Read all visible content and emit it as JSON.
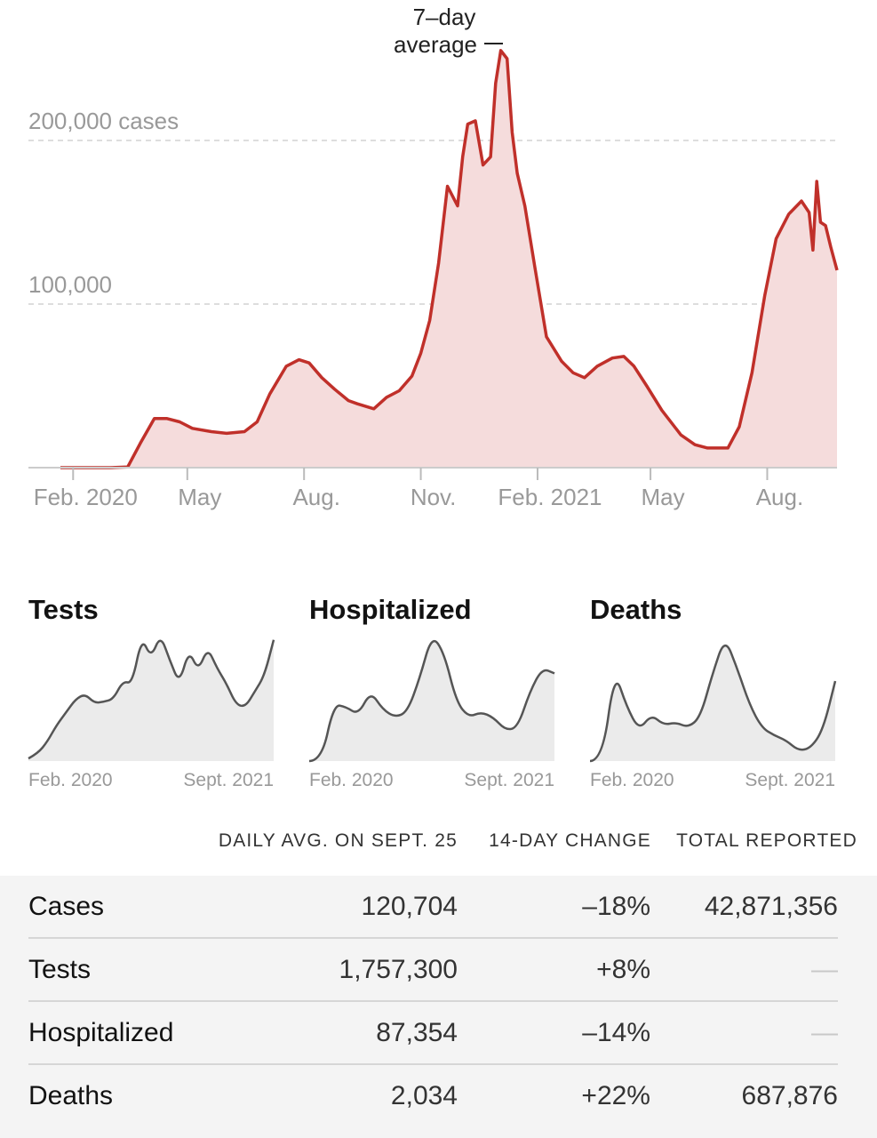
{
  "colors": {
    "case_line": "#c0302a",
    "case_fill": "#f5dcdc",
    "small_line": "#555555",
    "small_fill": "#ebebeb",
    "grid": "#dddddd",
    "axis_text": "#999999"
  },
  "chart_data": [
    {
      "type": "area",
      "title": "",
      "annotation": "7-day average",
      "y_tick_labels": [
        "200,000 cases",
        "100,000"
      ],
      "x_tick_labels": [
        "Feb. 2020",
        "May",
        "Aug.",
        "Nov.",
        "Feb. 2021",
        "May",
        "Aug."
      ],
      "ylim": [
        0,
        260000
      ],
      "grid": true,
      "x": [
        "2020-01-22",
        "2020-02-15",
        "2020-03-01",
        "2020-03-15",
        "2020-03-25",
        "2020-04-05",
        "2020-04-15",
        "2020-04-25",
        "2020-05-05",
        "2020-05-20",
        "2020-06-01",
        "2020-06-15",
        "2020-06-25",
        "2020-07-05",
        "2020-07-18",
        "2020-07-28",
        "2020-08-05",
        "2020-08-15",
        "2020-08-25",
        "2020-09-05",
        "2020-09-12",
        "2020-09-25",
        "2020-10-05",
        "2020-10-15",
        "2020-10-25",
        "2020-11-01",
        "2020-11-08",
        "2020-11-15",
        "2020-11-22",
        "2020-11-30",
        "2020-12-04",
        "2020-12-08",
        "2020-12-14",
        "2020-12-20",
        "2020-12-26",
        "2020-12-30",
        "2021-01-03",
        "2021-01-08",
        "2021-01-12",
        "2021-01-16",
        "2021-01-22",
        "2021-01-30",
        "2021-02-08",
        "2021-02-20",
        "2021-03-01",
        "2021-03-10",
        "2021-03-20",
        "2021-04-01",
        "2021-04-10",
        "2021-04-18",
        "2021-04-28",
        "2021-05-10",
        "2021-05-25",
        "2021-06-05",
        "2021-06-15",
        "2021-06-25",
        "2021-07-01",
        "2021-07-10",
        "2021-07-20",
        "2021-07-30",
        "2021-08-08",
        "2021-08-18",
        "2021-08-28",
        "2021-09-03",
        "2021-09-06",
        "2021-09-09",
        "2021-09-12",
        "2021-09-16",
        "2021-09-20",
        "2021-09-25"
      ],
      "series": [
        {
          "values": [
            0,
            0,
            0,
            400,
            15000,
            30000,
            30000,
            28000,
            24000,
            22000,
            21000,
            22000,
            28000,
            45000,
            62000,
            66000,
            64000,
            55000,
            48000,
            41000,
            39000,
            36000,
            43000,
            47000,
            56000,
            70000,
            90000,
            125000,
            172000,
            160000,
            190000,
            210000,
            212000,
            185000,
            190000,
            235000,
            255000,
            250000,
            205000,
            180000,
            160000,
            122000,
            80000,
            65000,
            58000,
            55000,
            62000,
            67000,
            68000,
            62000,
            50000,
            35000,
            20000,
            14000,
            12000,
            12000,
            12000,
            25000,
            58000,
            105000,
            140000,
            155000,
            163000,
            156000,
            133000,
            175000,
            150000,
            148000,
            135000,
            120704
          ]
        }
      ]
    },
    {
      "type": "area",
      "title": "Tests",
      "x_tick_labels": [
        "Feb. 2020",
        "Sept. 2021"
      ],
      "series": [
        {
          "values": [
            2,
            6,
            15,
            28,
            38,
            48,
            52,
            45,
            46,
            48,
            62,
            60,
            96,
            80,
            98,
            78,
            60,
            86,
            70,
            88,
            72,
            60,
            44,
            42,
            54,
            66,
            94
          ]
        }
      ]
    },
    {
      "type": "area",
      "title": "Hospitalized",
      "x_tick_labels": [
        "Feb. 2020",
        "Sept. 2021"
      ],
      "series": [
        {
          "values": [
            0,
            0,
            44,
            42,
            36,
            54,
            40,
            34,
            38,
            64,
            98,
            84,
            46,
            34,
            38,
            34,
            24,
            26,
            54,
            72,
            68
          ]
        }
      ]
    },
    {
      "type": "area",
      "title": "Deaths",
      "x_tick_labels": [
        "Feb. 2020",
        "Sept. 2021"
      ],
      "series": [
        {
          "values": [
            0,
            0,
            70,
            42,
            24,
            36,
            28,
            30,
            26,
            34,
            68,
            96,
            72,
            44,
            26,
            20,
            16,
            8,
            10,
            24,
            62
          ]
        }
      ]
    }
  ],
  "table": {
    "headers": [
      "DAILY AVG. ON SEPT. 25",
      "14-DAY CHANGE",
      "TOTAL REPORTED"
    ],
    "rows": [
      {
        "label": "Cases",
        "daily": "120,704",
        "change": "–18%",
        "total": "42,871,356"
      },
      {
        "label": "Tests",
        "daily": "1,757,300",
        "change": "+8%",
        "total": "—"
      },
      {
        "label": "Hospitalized",
        "daily": "87,354",
        "change": "–14%",
        "total": "—"
      },
      {
        "label": "Deaths",
        "daily": "2,034",
        "change": "+22%",
        "total": "687,876"
      }
    ]
  }
}
